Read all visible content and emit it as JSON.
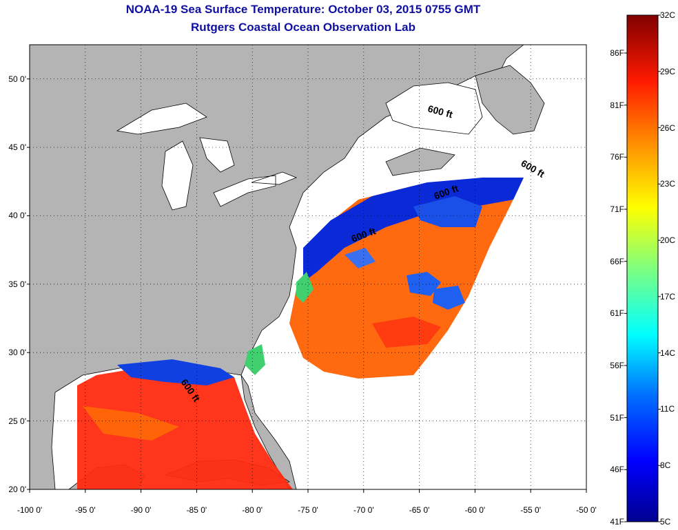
{
  "title": "NOAA-19 Sea Surface Temperature:  October 03, 2015 0755 GMT",
  "subtitle": "Rutgers Coastal Ocean Observation Lab",
  "map": {
    "lon_range": [
      -100,
      -50
    ],
    "lat_range": [
      20,
      52.5
    ],
    "lat_ticks": [
      "20 0'",
      "25 0'",
      "30 0'",
      "35 0'",
      "40 0'",
      "45 0'",
      "50 0'"
    ],
    "lon_ticks": [
      "-100 0'",
      "-95 0'",
      "-90 0'",
      "-85 0'",
      "-80 0'",
      "-75 0'",
      "-70 0'",
      "-65 0'",
      "-60 0'",
      "-55 0'",
      "-50 0'"
    ],
    "contour_labels": [
      "600 ft",
      "600 ft",
      "600 ft",
      "600 ft",
      "600 ft"
    ],
    "land_color": "#b4b4b4",
    "grid": true
  },
  "colorbar": {
    "fahrenheit": [
      "86F",
      "81F",
      "76F",
      "71F",
      "66F",
      "61F",
      "56F",
      "51F",
      "46F",
      "41F"
    ],
    "celsius": [
      "32C",
      "29C",
      "26C",
      "23C",
      "20C",
      "17C",
      "14C",
      "11C",
      "8C",
      "5C"
    ],
    "min_c": 5,
    "max_c": 32
  }
}
